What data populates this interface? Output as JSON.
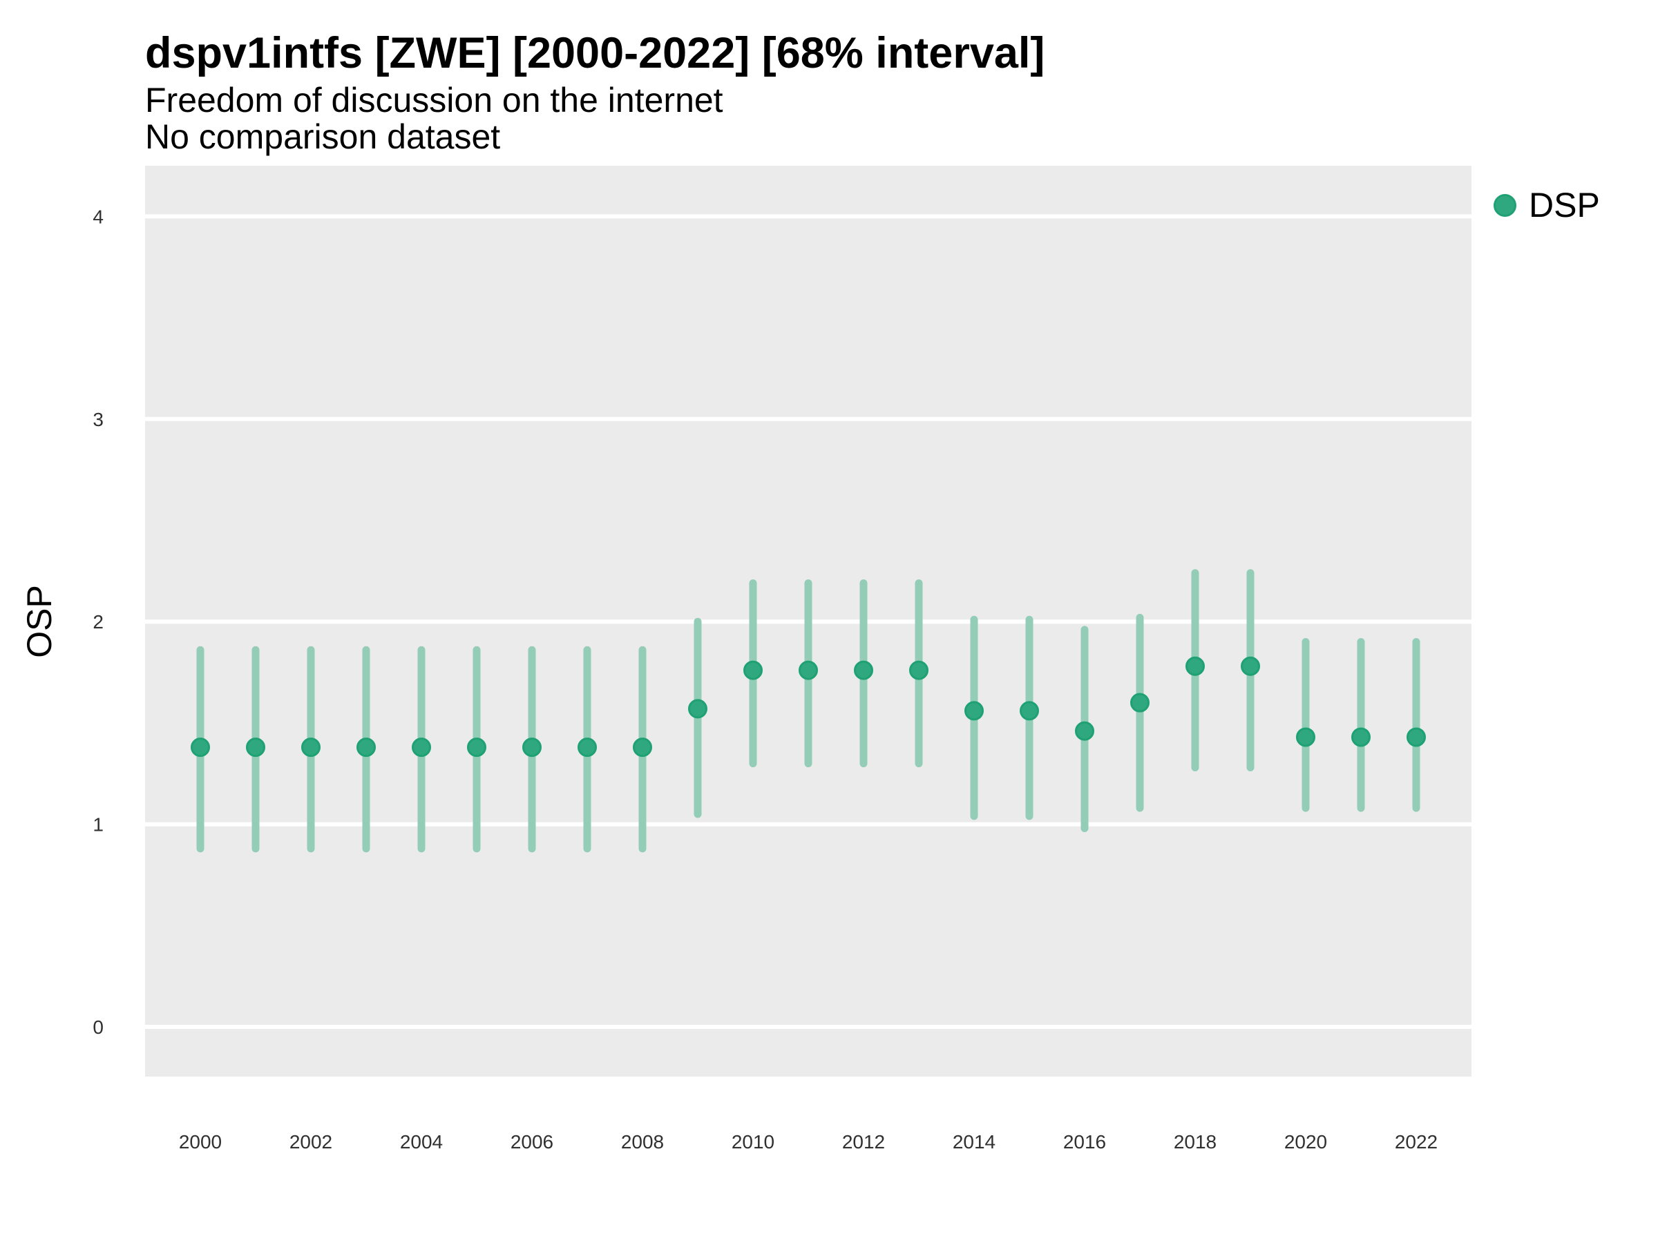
{
  "header": {
    "title": "dspv1intfs [ZWE] [2000-2022] [68% interval]",
    "subtitle": "Freedom of discussion on the internet",
    "note": "No comparison dataset"
  },
  "legend": {
    "label": "DSP"
  },
  "chart_data": {
    "type": "pointrange",
    "title": "dspv1intfs [ZWE] [2000-2022] [68% interval]",
    "subtitle": "Freedom of discussion on the internet",
    "note": "No comparison dataset",
    "xlabel": "",
    "ylabel": "OSP",
    "ylim": [
      0,
      4
    ],
    "yticks": [
      0,
      1,
      2,
      3,
      4
    ],
    "xticks": [
      2000,
      2002,
      2004,
      2006,
      2008,
      2010,
      2012,
      2014,
      2016,
      2018,
      2020,
      2022
    ],
    "x_range": [
      2000,
      2022
    ],
    "interval": "68%",
    "grid": "horizontal-major-only",
    "legend_position": "right",
    "series": [
      {
        "name": "DSP",
        "points": [
          {
            "year": 2000,
            "value": 1.38,
            "lo": 0.88,
            "hi": 1.86
          },
          {
            "year": 2001,
            "value": 1.38,
            "lo": 0.88,
            "hi": 1.86
          },
          {
            "year": 2002,
            "value": 1.38,
            "lo": 0.88,
            "hi": 1.86
          },
          {
            "year": 2003,
            "value": 1.38,
            "lo": 0.88,
            "hi": 1.86
          },
          {
            "year": 2004,
            "value": 1.38,
            "lo": 0.88,
            "hi": 1.86
          },
          {
            "year": 2005,
            "value": 1.38,
            "lo": 0.88,
            "hi": 1.86
          },
          {
            "year": 2006,
            "value": 1.38,
            "lo": 0.88,
            "hi": 1.86
          },
          {
            "year": 2007,
            "value": 1.38,
            "lo": 0.88,
            "hi": 1.86
          },
          {
            "year": 2008,
            "value": 1.38,
            "lo": 0.88,
            "hi": 1.86
          },
          {
            "year": 2009,
            "value": 1.57,
            "lo": 1.05,
            "hi": 2.0
          },
          {
            "year": 2010,
            "value": 1.76,
            "lo": 1.3,
            "hi": 2.19
          },
          {
            "year": 2011,
            "value": 1.76,
            "lo": 1.3,
            "hi": 2.19
          },
          {
            "year": 2012,
            "value": 1.76,
            "lo": 1.3,
            "hi": 2.19
          },
          {
            "year": 2013,
            "value": 1.76,
            "lo": 1.3,
            "hi": 2.19
          },
          {
            "year": 2014,
            "value": 1.56,
            "lo": 1.04,
            "hi": 2.01
          },
          {
            "year": 2015,
            "value": 1.56,
            "lo": 1.04,
            "hi": 2.01
          },
          {
            "year": 2016,
            "value": 1.46,
            "lo": 0.98,
            "hi": 1.96
          },
          {
            "year": 2017,
            "value": 1.6,
            "lo": 1.08,
            "hi": 2.02
          },
          {
            "year": 2018,
            "value": 1.78,
            "lo": 1.28,
            "hi": 2.24
          },
          {
            "year": 2019,
            "value": 1.78,
            "lo": 1.28,
            "hi": 2.24
          },
          {
            "year": 2020,
            "value": 1.43,
            "lo": 1.08,
            "hi": 1.9
          },
          {
            "year": 2021,
            "value": 1.43,
            "lo": 1.08,
            "hi": 1.9
          },
          {
            "year": 2022,
            "value": 1.43,
            "lo": 1.08,
            "hi": 1.9
          }
        ]
      }
    ],
    "colors": {
      "point": "#2FA87F",
      "point_edge": "#1FA173",
      "interval": "#93CDB7",
      "panel": "#EBEBEB",
      "grid": "#FFFFFF",
      "tick_text": "#303030"
    }
  }
}
